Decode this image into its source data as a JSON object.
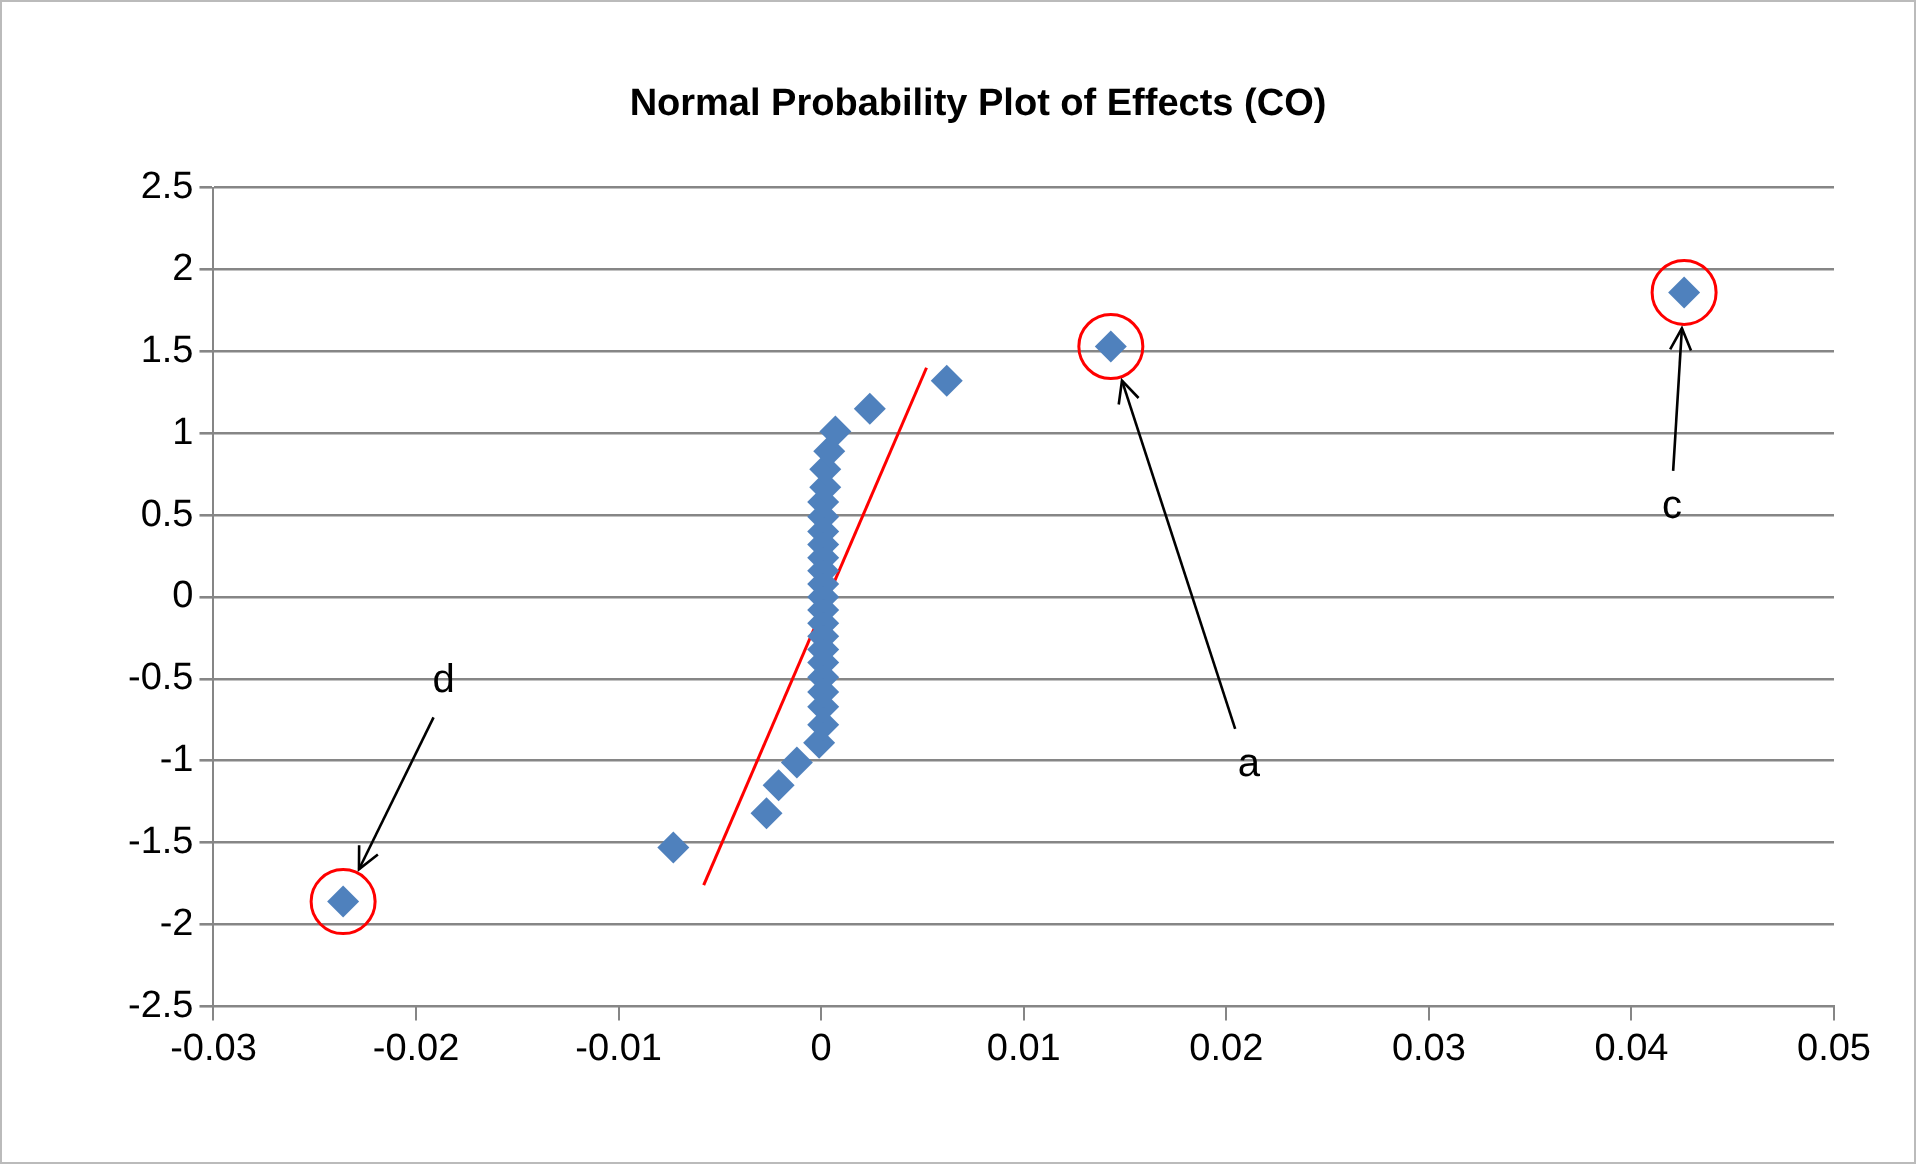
{
  "chart_data": {
    "type": "scatter",
    "title": "Normal Probability Plot of Effects (CO)",
    "xlim": [
      -0.03,
      0.05
    ],
    "xticks": [
      -0.03,
      -0.02,
      -0.01,
      0,
      0.01,
      0.02,
      0.03,
      0.04,
      0.05
    ],
    "ylim": [
      -2.5,
      2.5
    ],
    "yticks": [
      -2.5,
      -2,
      -1.5,
      -1,
      -0.5,
      0,
      0.5,
      1,
      1.5,
      2,
      2.5
    ],
    "grid": "y",
    "legend": false,
    "marker": "diamond",
    "series": [
      {
        "color": "#4f81bd",
        "x": [
          -0.0236,
          -0.0073,
          -0.0027,
          -0.0021,
          -0.0012,
          -0.0001,
          0.0001,
          0.0001,
          0.0001,
          0.0001,
          0.0001,
          0.0001,
          0.0001,
          0.0001,
          0.0001,
          0.0001,
          0.0001,
          0.0001,
          0.0001,
          0.0001,
          0.0001,
          0.0001,
          0.0001,
          0.0002,
          0.0002,
          0.0004,
          0.0007,
          0.0024,
          0.0062,
          0.0143,
          0.0426
        ],
        "values": [
          -1.86,
          -1.53,
          -1.32,
          -1.15,
          -1.01,
          -0.89,
          -0.78,
          -0.67,
          -0.58,
          -0.49,
          -0.4,
          -0.32,
          -0.24,
          -0.16,
          -0.08,
          0,
          0.08,
          0.16,
          0.24,
          0.32,
          0.4,
          0.49,
          0.58,
          0.67,
          0.78,
          0.89,
          1.01,
          1.15,
          1.32,
          1.53,
          1.86
        ]
      },
      {
        "type": "line",
        "color": "#ff0000",
        "marker": "none",
        "x": [
          -0.0058,
          0.0052
        ],
        "values": [
          -1.76,
          1.4
        ]
      }
    ],
    "annotations": [
      "a",
      "c",
      "d"
    ]
  }
}
